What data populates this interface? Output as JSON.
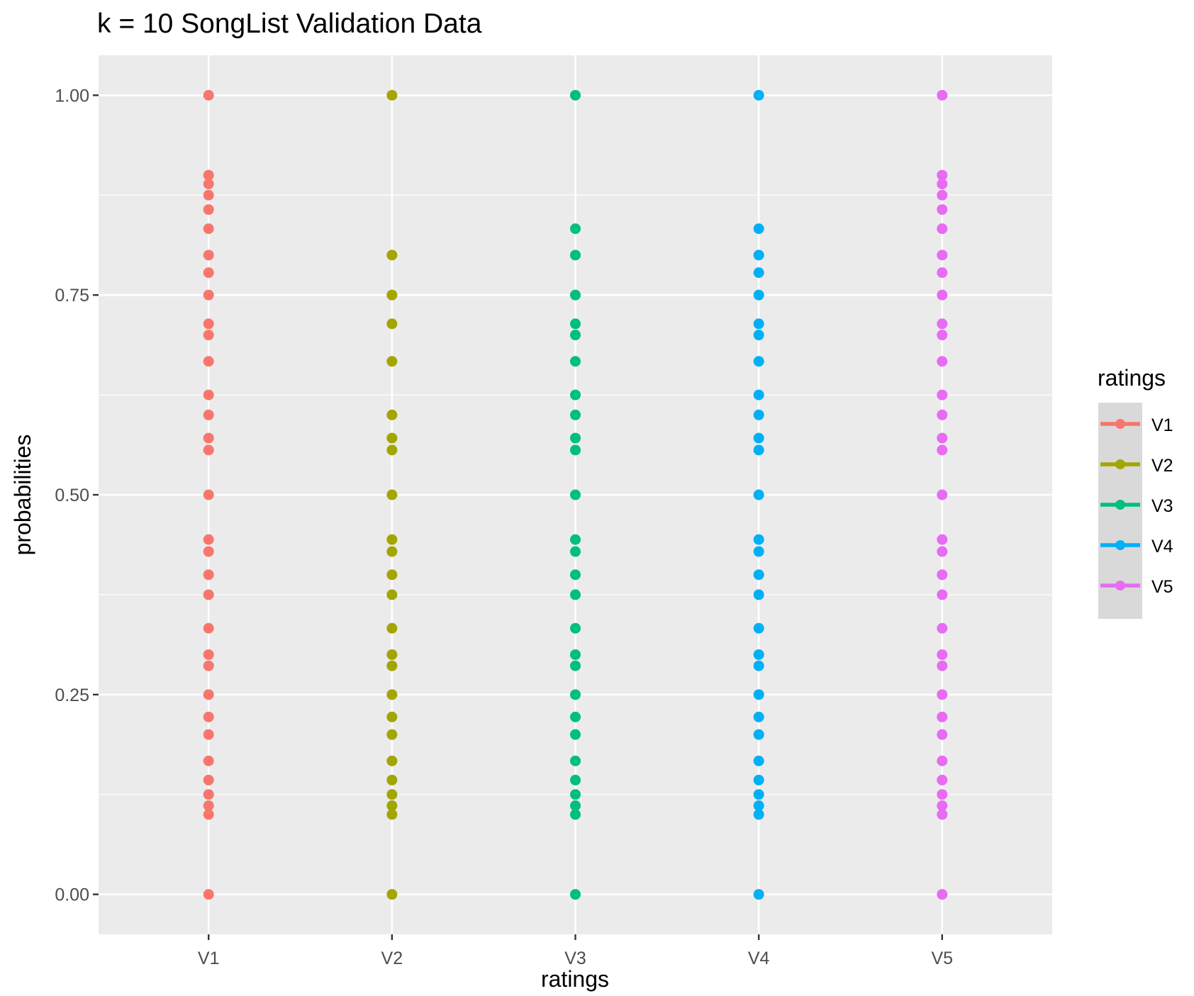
{
  "chart_data": {
    "type": "scatter",
    "title": "k = 10 SongList Validation Data",
    "xlabel": "ratings",
    "ylabel": "probabilities",
    "categories": [
      "V1",
      "V2",
      "V3",
      "V4",
      "V5"
    ],
    "ylim": [
      -0.05,
      1.05
    ],
    "y_ticks": [
      "0.00",
      "0.25",
      "0.50",
      "0.75",
      "1.00"
    ],
    "grid": true,
    "legend": {
      "title": "ratings",
      "position": "right",
      "entries": [
        "V1",
        "V2",
        "V3",
        "V4",
        "V5"
      ]
    },
    "colors": {
      "V1": "#F8766D",
      "V2": "#A3A500",
      "V3": "#00BF7D",
      "V4": "#00B0F6",
      "V5": "#E76BF3",
      "panel_background": "#EBEBEB",
      "grid": "#FFFFFF",
      "legend_key_background": "#D9D9D9"
    },
    "series": [
      {
        "name": "V1",
        "values": [
          1.0,
          0.9,
          0.889,
          0.875,
          0.857,
          0.833,
          0.8,
          0.778,
          0.75,
          0.714,
          0.7,
          0.667,
          0.625,
          0.6,
          0.571,
          0.556,
          0.5,
          0.444,
          0.429,
          0.4,
          0.375,
          0.333,
          0.3,
          0.286,
          0.25,
          0.222,
          0.2,
          0.167,
          0.143,
          0.125,
          0.111,
          0.1,
          0.0
        ]
      },
      {
        "name": "V2",
        "values": [
          1.0,
          0.8,
          0.75,
          0.714,
          0.667,
          0.6,
          0.571,
          0.556,
          0.5,
          0.444,
          0.429,
          0.4,
          0.375,
          0.333,
          0.3,
          0.286,
          0.25,
          0.222,
          0.2,
          0.167,
          0.143,
          0.125,
          0.111,
          0.1,
          0.0
        ]
      },
      {
        "name": "V3",
        "values": [
          1.0,
          0.833,
          0.8,
          0.75,
          0.714,
          0.7,
          0.667,
          0.625,
          0.6,
          0.571,
          0.556,
          0.5,
          0.444,
          0.429,
          0.4,
          0.375,
          0.333,
          0.3,
          0.286,
          0.25,
          0.222,
          0.2,
          0.167,
          0.143,
          0.125,
          0.111,
          0.1,
          0.0
        ]
      },
      {
        "name": "V4",
        "values": [
          1.0,
          0.833,
          0.8,
          0.778,
          0.75,
          0.714,
          0.7,
          0.667,
          0.625,
          0.6,
          0.571,
          0.556,
          0.5,
          0.444,
          0.429,
          0.4,
          0.375,
          0.333,
          0.3,
          0.286,
          0.25,
          0.222,
          0.2,
          0.167,
          0.143,
          0.125,
          0.111,
          0.1,
          0.0
        ]
      },
      {
        "name": "V5",
        "values": [
          1.0,
          0.9,
          0.889,
          0.875,
          0.857,
          0.833,
          0.8,
          0.778,
          0.75,
          0.714,
          0.7,
          0.667,
          0.625,
          0.6,
          0.571,
          0.556,
          0.5,
          0.444,
          0.429,
          0.4,
          0.375,
          0.333,
          0.3,
          0.286,
          0.25,
          0.222,
          0.2,
          0.167,
          0.143,
          0.125,
          0.111,
          0.1,
          0.0
        ]
      }
    ]
  }
}
